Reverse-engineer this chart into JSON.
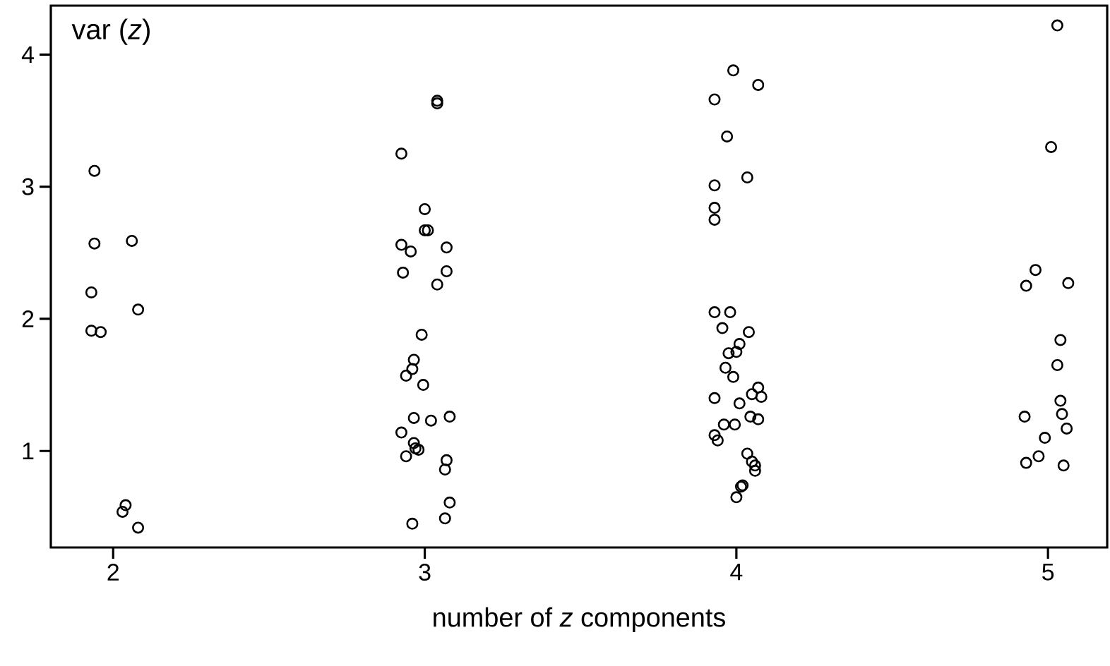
{
  "chart_data": {
    "type": "scatter",
    "xlabel": "number of *z* components",
    "ylabel": "var (*z*)",
    "xlim": [
      1.8,
      5.19
    ],
    "ylim": [
      0.27,
      4.37
    ],
    "xticks": [
      2,
      3,
      4,
      5
    ],
    "yticks": [
      1,
      2,
      3,
      4
    ],
    "marker": "circle",
    "series": [
      {
        "color": "#000000",
        "x": [
          1.94,
          1.94,
          2.06,
          1.93,
          2.08,
          1.93,
          1.96,
          2.04,
          2.03,
          2.08,
          3.04,
          3.04,
          2.925,
          3.0,
          3.0,
          3.01,
          2.925,
          2.955,
          3.07,
          2.93,
          3.07,
          3.04,
          2.99,
          2.965,
          2.96,
          2.94,
          2.995,
          2.965,
          3.02,
          3.08,
          2.925,
          2.965,
          2.98,
          2.97,
          2.94,
          3.07,
          3.065,
          3.08,
          3.065,
          2.96,
          3.99,
          4.07,
          3.93,
          3.97,
          4.035,
          3.93,
          3.93,
          3.93,
          3.93,
          3.98,
          3.955,
          4.04,
          4.01,
          3.975,
          4.0,
          3.965,
          3.99,
          4.07,
          4.05,
          4.08,
          3.93,
          4.01,
          4.045,
          4.07,
          3.96,
          3.995,
          3.93,
          3.94,
          4.035,
          4.05,
          4.06,
          4.06,
          4.02,
          4.015,
          4.0,
          5.03,
          5.01,
          4.96,
          4.93,
          5.065,
          5.04,
          5.03,
          5.04,
          5.045,
          4.925,
          5.06,
          4.99,
          4.97,
          4.93,
          5.05
        ],
        "values": [
          3.12,
          2.57,
          2.59,
          2.2,
          2.07,
          1.91,
          1.9,
          0.59,
          0.54,
          0.42,
          3.65,
          3.63,
          3.25,
          2.83,
          2.67,
          2.67,
          2.56,
          2.51,
          2.54,
          2.35,
          2.36,
          2.26,
          1.88,
          1.69,
          1.62,
          1.57,
          1.5,
          1.25,
          1.23,
          1.26,
          1.14,
          1.06,
          1.01,
          1.02,
          0.96,
          0.93,
          0.86,
          0.61,
          0.49,
          0.45,
          3.88,
          3.77,
          3.66,
          3.38,
          3.07,
          3.01,
          2.84,
          2.75,
          2.05,
          2.05,
          1.93,
          1.9,
          1.81,
          1.74,
          1.75,
          1.63,
          1.56,
          1.48,
          1.43,
          1.41,
          1.4,
          1.36,
          1.26,
          1.24,
          1.2,
          1.2,
          1.12,
          1.08,
          0.98,
          0.92,
          0.89,
          0.85,
          0.74,
          0.73,
          0.65,
          4.22,
          3.3,
          2.37,
          2.25,
          2.27,
          1.84,
          1.65,
          1.38,
          1.28,
          1.26,
          1.17,
          1.1,
          0.96,
          0.91,
          0.89
        ]
      }
    ]
  }
}
